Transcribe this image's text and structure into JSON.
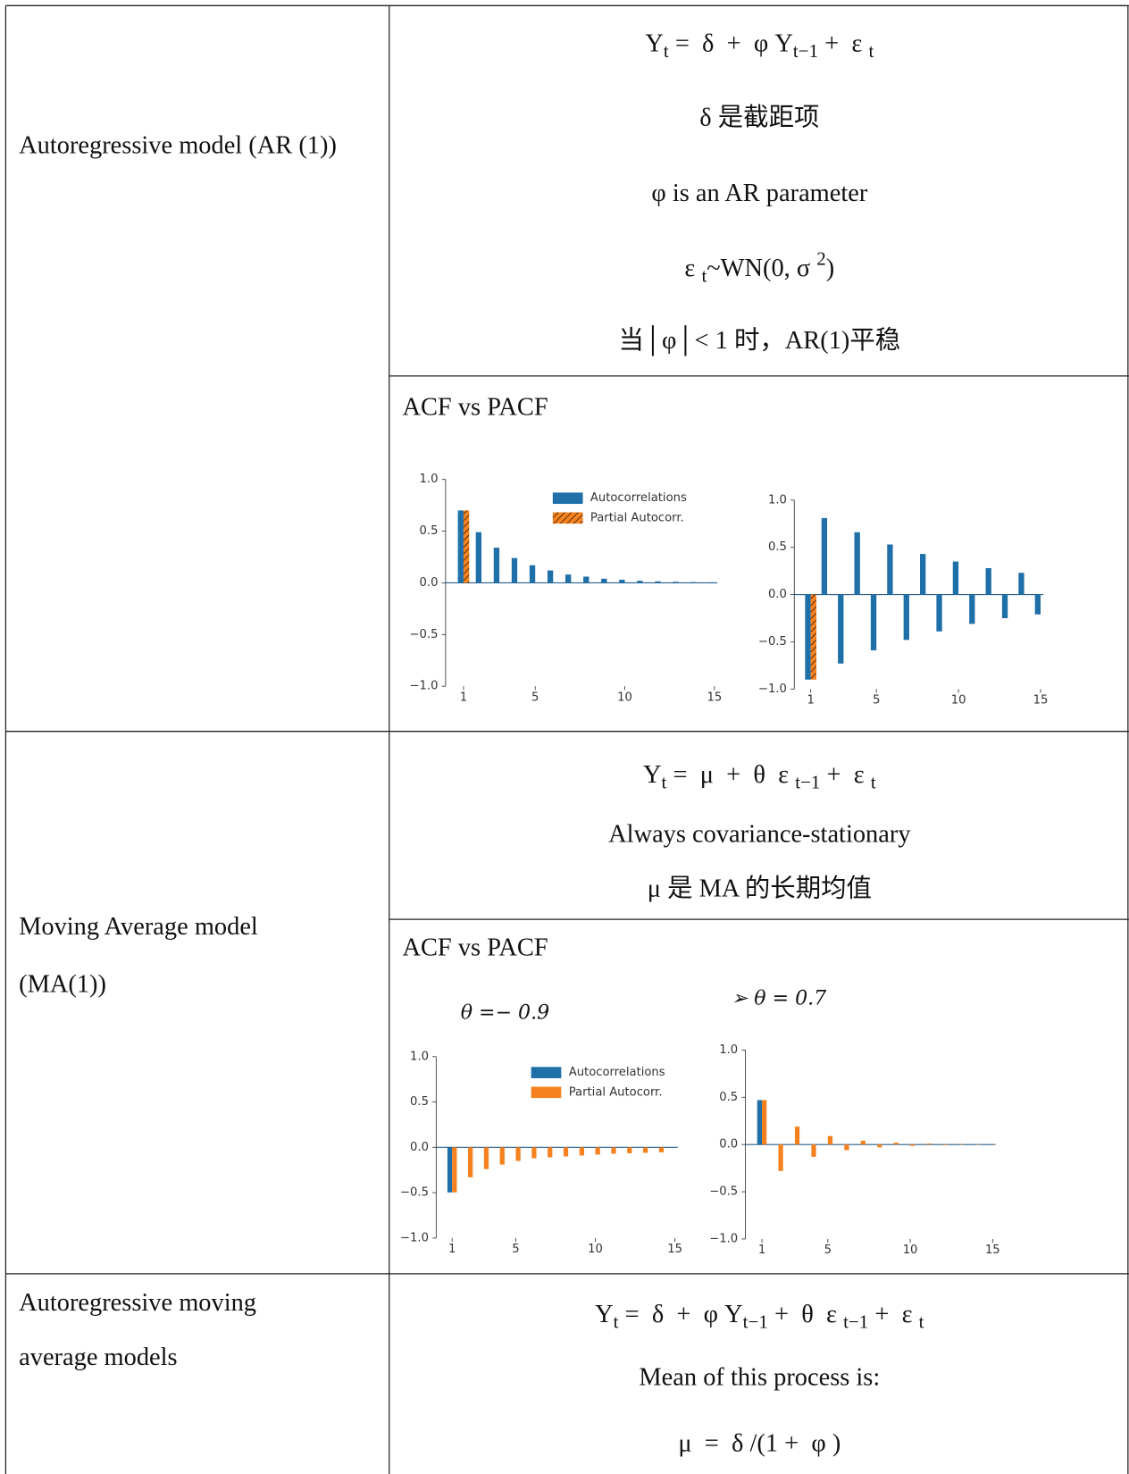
{
  "table": {
    "rows": [
      {
        "label": [
          "Autoregressive model (AR (1))"
        ],
        "lines": [
          [
            "Y",
            {
              "sub": "t"
            },
            " =  δ  +  φ Y",
            {
              "sub": "t−1"
            },
            " +  ε ",
            {
              "sub": "t"
            }
          ],
          [
            "δ 是截距项"
          ],
          [
            "φ is an AR parameter"
          ],
          [
            "ε ",
            {
              "sub": "t"
            },
            "~WN(0, σ ",
            {
              "sup": "2"
            },
            ")"
          ],
          [
            "当│φ│< 1 时，AR(1)平稳"
          ]
        ],
        "caption": "ACF vs PACF"
      },
      {
        "label": [
          "Moving Average model",
          "(MA(1))"
        ],
        "lines": [
          [
            "Y",
            {
              "sub": "t"
            },
            " =  μ  +  θ  ε ",
            {
              "sub": "t−1"
            },
            " +  ε ",
            {
              "sub": "t"
            }
          ],
          [
            "Always covariance-stationary"
          ],
          [
            "μ 是 MA 的长期均值"
          ]
        ],
        "caption": "ACF vs PACF"
      },
      {
        "label": [
          "Autoregressive moving",
          "average models"
        ],
        "lines": [
          [
            "Y",
            {
              "sub": "t"
            },
            " =  δ  +  φ Y",
            {
              "sub": "t−1"
            },
            " +  θ  ε ",
            {
              "sub": "t−1"
            },
            " +  ε ",
            {
              "sub": "t"
            }
          ],
          [
            "Mean of this process is:"
          ],
          [
            "μ  =  δ /(1 +  φ )"
          ]
        ]
      }
    ]
  },
  "chart_data": [
    {
      "type": "bar",
      "x": [
        1,
        2,
        3,
        4,
        5,
        6,
        7,
        8,
        9,
        10,
        11,
        12,
        13,
        14,
        15
      ],
      "series": [
        {
          "name": "Autocorrelations",
          "color": "#1f6fa8",
          "values": [
            0.7,
            0.49,
            0.34,
            0.24,
            0.17,
            0.12,
            0.08,
            0.06,
            0.04,
            0.03,
            0.02,
            0.014,
            0.01,
            0.007,
            0.005
          ]
        },
        {
          "name": "Partial Autocorr.",
          "color": "#f5821f",
          "hatch": "//",
          "values": [
            0.7,
            0,
            0,
            0,
            0,
            0,
            0,
            0,
            0,
            0,
            0,
            0,
            0,
            0,
            0
          ]
        }
      ],
      "xlim": [
        0,
        15
      ],
      "xticks": [
        1,
        5,
        10,
        15
      ],
      "ylim": [
        -1,
        1
      ],
      "yticks": [
        {
          "value": -1,
          "label": "−1.0"
        },
        {
          "value": -0.5,
          "label": "−0.5"
        },
        {
          "value": 0,
          "label": "0.0"
        },
        0.5,
        {
          "value": 1,
          "label": "1.0"
        }
      ],
      "legend": "upper right"
    },
    {
      "type": "bar",
      "x": [
        1,
        2,
        3,
        4,
        5,
        6,
        7,
        8,
        9,
        10,
        11,
        12,
        13,
        14,
        15
      ],
      "series": [
        {
          "color": "#1f6fa8",
          "values": [
            -0.9,
            0.81,
            -0.73,
            0.66,
            -0.59,
            0.53,
            -0.48,
            0.43,
            -0.39,
            0.35,
            -0.31,
            0.28,
            -0.25,
            0.23,
            -0.21
          ]
        },
        {
          "color": "#f5821f",
          "hatch": "//",
          "values": [
            -0.9,
            0,
            0,
            0,
            0,
            0,
            0,
            0,
            0,
            0,
            0,
            0,
            0,
            0,
            0
          ]
        }
      ],
      "xlim": [
        0,
        15
      ],
      "xticks": [
        1,
        5,
        10,
        15
      ],
      "ylim": [
        -1,
        1
      ],
      "yticks": [
        {
          "value": -1,
          "label": "−1.0"
        },
        {
          "value": -0.5,
          "label": "−0.5"
        },
        {
          "value": 0,
          "label": "0.0"
        },
        0.5,
        {
          "value": 1,
          "label": "1.0"
        }
      ]
    },
    {
      "type": "bar",
      "title": "θ =− 0.9",
      "x": [
        1,
        2,
        3,
        4,
        5,
        6,
        7,
        8,
        9,
        10,
        11,
        12,
        13,
        14
      ],
      "series": [
        {
          "name": "Autocorrelations",
          "color": "#1f6fa8",
          "values": [
            -0.497,
            0,
            0,
            0,
            0,
            0,
            0,
            0,
            0,
            0,
            0,
            0,
            0,
            0
          ]
        },
        {
          "name": "Partial Autocorr.",
          "color": "#f5821f",
          "values": [
            -0.497,
            -0.33,
            -0.24,
            -0.19,
            -0.15,
            -0.12,
            -0.11,
            -0.1,
            -0.09,
            -0.08,
            -0.07,
            -0.065,
            -0.06,
            -0.055
          ]
        }
      ],
      "xlim": [
        0,
        15
      ],
      "xticks": [
        1,
        5,
        10,
        15
      ],
      "ylim": [
        -1,
        1
      ],
      "yticks": [
        {
          "value": -1,
          "label": "−1.0"
        },
        {
          "value": -0.5,
          "label": "−0.5"
        },
        {
          "value": 0,
          "label": "0.0"
        },
        0.5,
        {
          "value": 1,
          "label": "1.0"
        }
      ],
      "legend": "upper right"
    },
    {
      "type": "bar",
      "title": "➢ θ = 0.7",
      "x": [
        1,
        2,
        3,
        4,
        5,
        6,
        7,
        8,
        9,
        10,
        11,
        12,
        13,
        14,
        15
      ],
      "series": [
        {
          "color": "#1f6fa8",
          "values": [
            0.47,
            0,
            0,
            0,
            0,
            0,
            0,
            0,
            0,
            0,
            0,
            0,
            0,
            0,
            0
          ]
        },
        {
          "color": "#f5821f",
          "values": [
            0.47,
            -0.28,
            0.19,
            -0.13,
            0.09,
            -0.06,
            0.04,
            -0.03,
            0.02,
            -0.015,
            0.01,
            -0.007,
            0.005,
            -0.003,
            0.002
          ]
        }
      ],
      "xlim": [
        0,
        15
      ],
      "xticks": [
        1,
        5,
        10,
        15
      ],
      "ylim": [
        -1,
        1
      ],
      "yticks": [
        {
          "value": -1,
          "label": "−1.0"
        },
        {
          "value": -0.5,
          "label": "−0.5"
        },
        {
          "value": 0,
          "label": "0.0"
        },
        0.5,
        {
          "value": 1,
          "label": "1.0"
        }
      ]
    }
  ]
}
